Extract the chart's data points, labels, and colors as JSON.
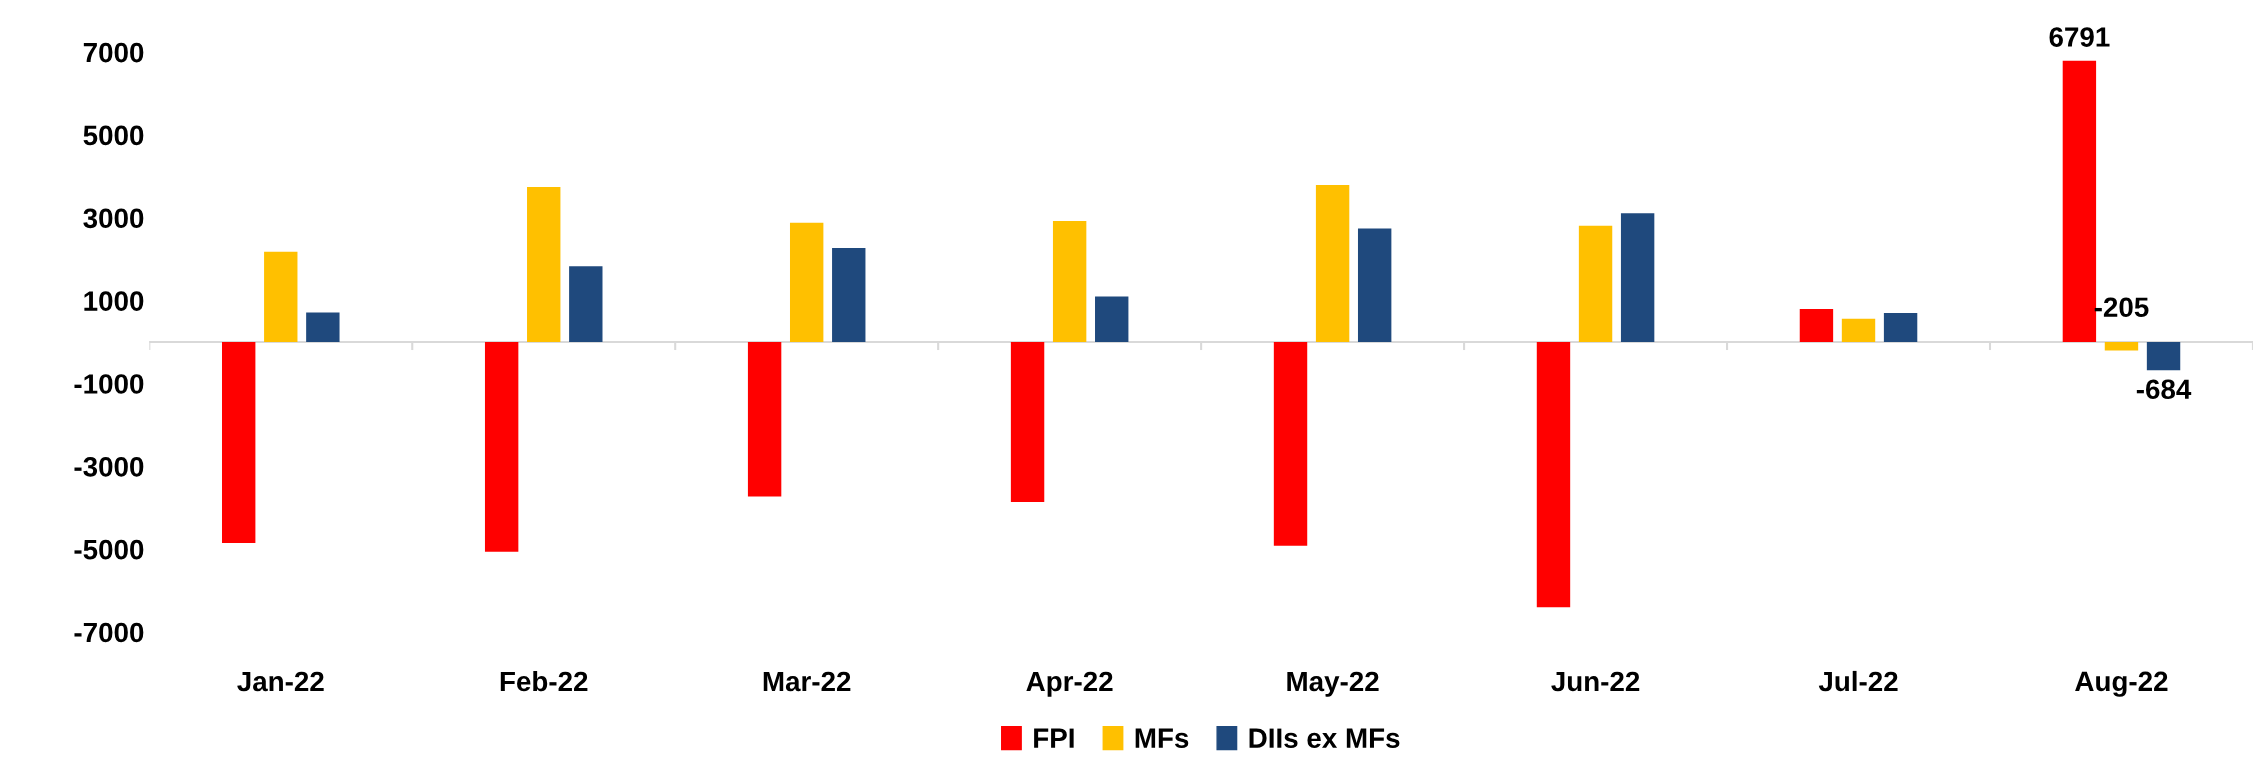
{
  "chart_data": {
    "type": "bar",
    "categories": [
      "Jan-22",
      "Feb-22",
      "Mar-22",
      "Apr-22",
      "May-22",
      "Jun-22",
      "Jul-22",
      "Aug-22"
    ],
    "series": [
      {
        "name": "FPI",
        "color": "#ff0000",
        "values": [
          -4850,
          -5060,
          -3730,
          -3860,
          -4920,
          -6400,
          800,
          6791
        ],
        "value_labels": [
          null,
          null,
          null,
          null,
          null,
          null,
          null,
          "6791"
        ]
      },
      {
        "name": "MFs",
        "color": "#ffc000",
        "values": [
          2180,
          3740,
          2880,
          2920,
          3790,
          2810,
          560,
          -205
        ],
        "value_labels": [
          null,
          null,
          null,
          null,
          null,
          null,
          null,
          "-205"
        ]
      },
      {
        "name": "DIIs ex MFs",
        "color": "#1f497d",
        "values": [
          710,
          1830,
          2270,
          1100,
          2740,
          3110,
          700,
          -684
        ],
        "value_labels": [
          null,
          null,
          null,
          null,
          null,
          null,
          null,
          "-684"
        ]
      }
    ],
    "ylim": [
      -7000,
      7000
    ],
    "yticks": [
      {
        "value": 7000,
        "label": "7000"
      },
      {
        "value": 5000,
        "label": "5000"
      },
      {
        "value": 3000,
        "label": "3000"
      },
      {
        "value": 1000,
        "label": "1000"
      },
      {
        "value": -1000,
        "label": "-1000"
      },
      {
        "value": -3000,
        "label": "-3000"
      },
      {
        "value": -5000,
        "label": "-5000"
      },
      {
        "value": -7000,
        "label": "-7000"
      }
    ],
    "grid": false,
    "legend": "bottom"
  }
}
